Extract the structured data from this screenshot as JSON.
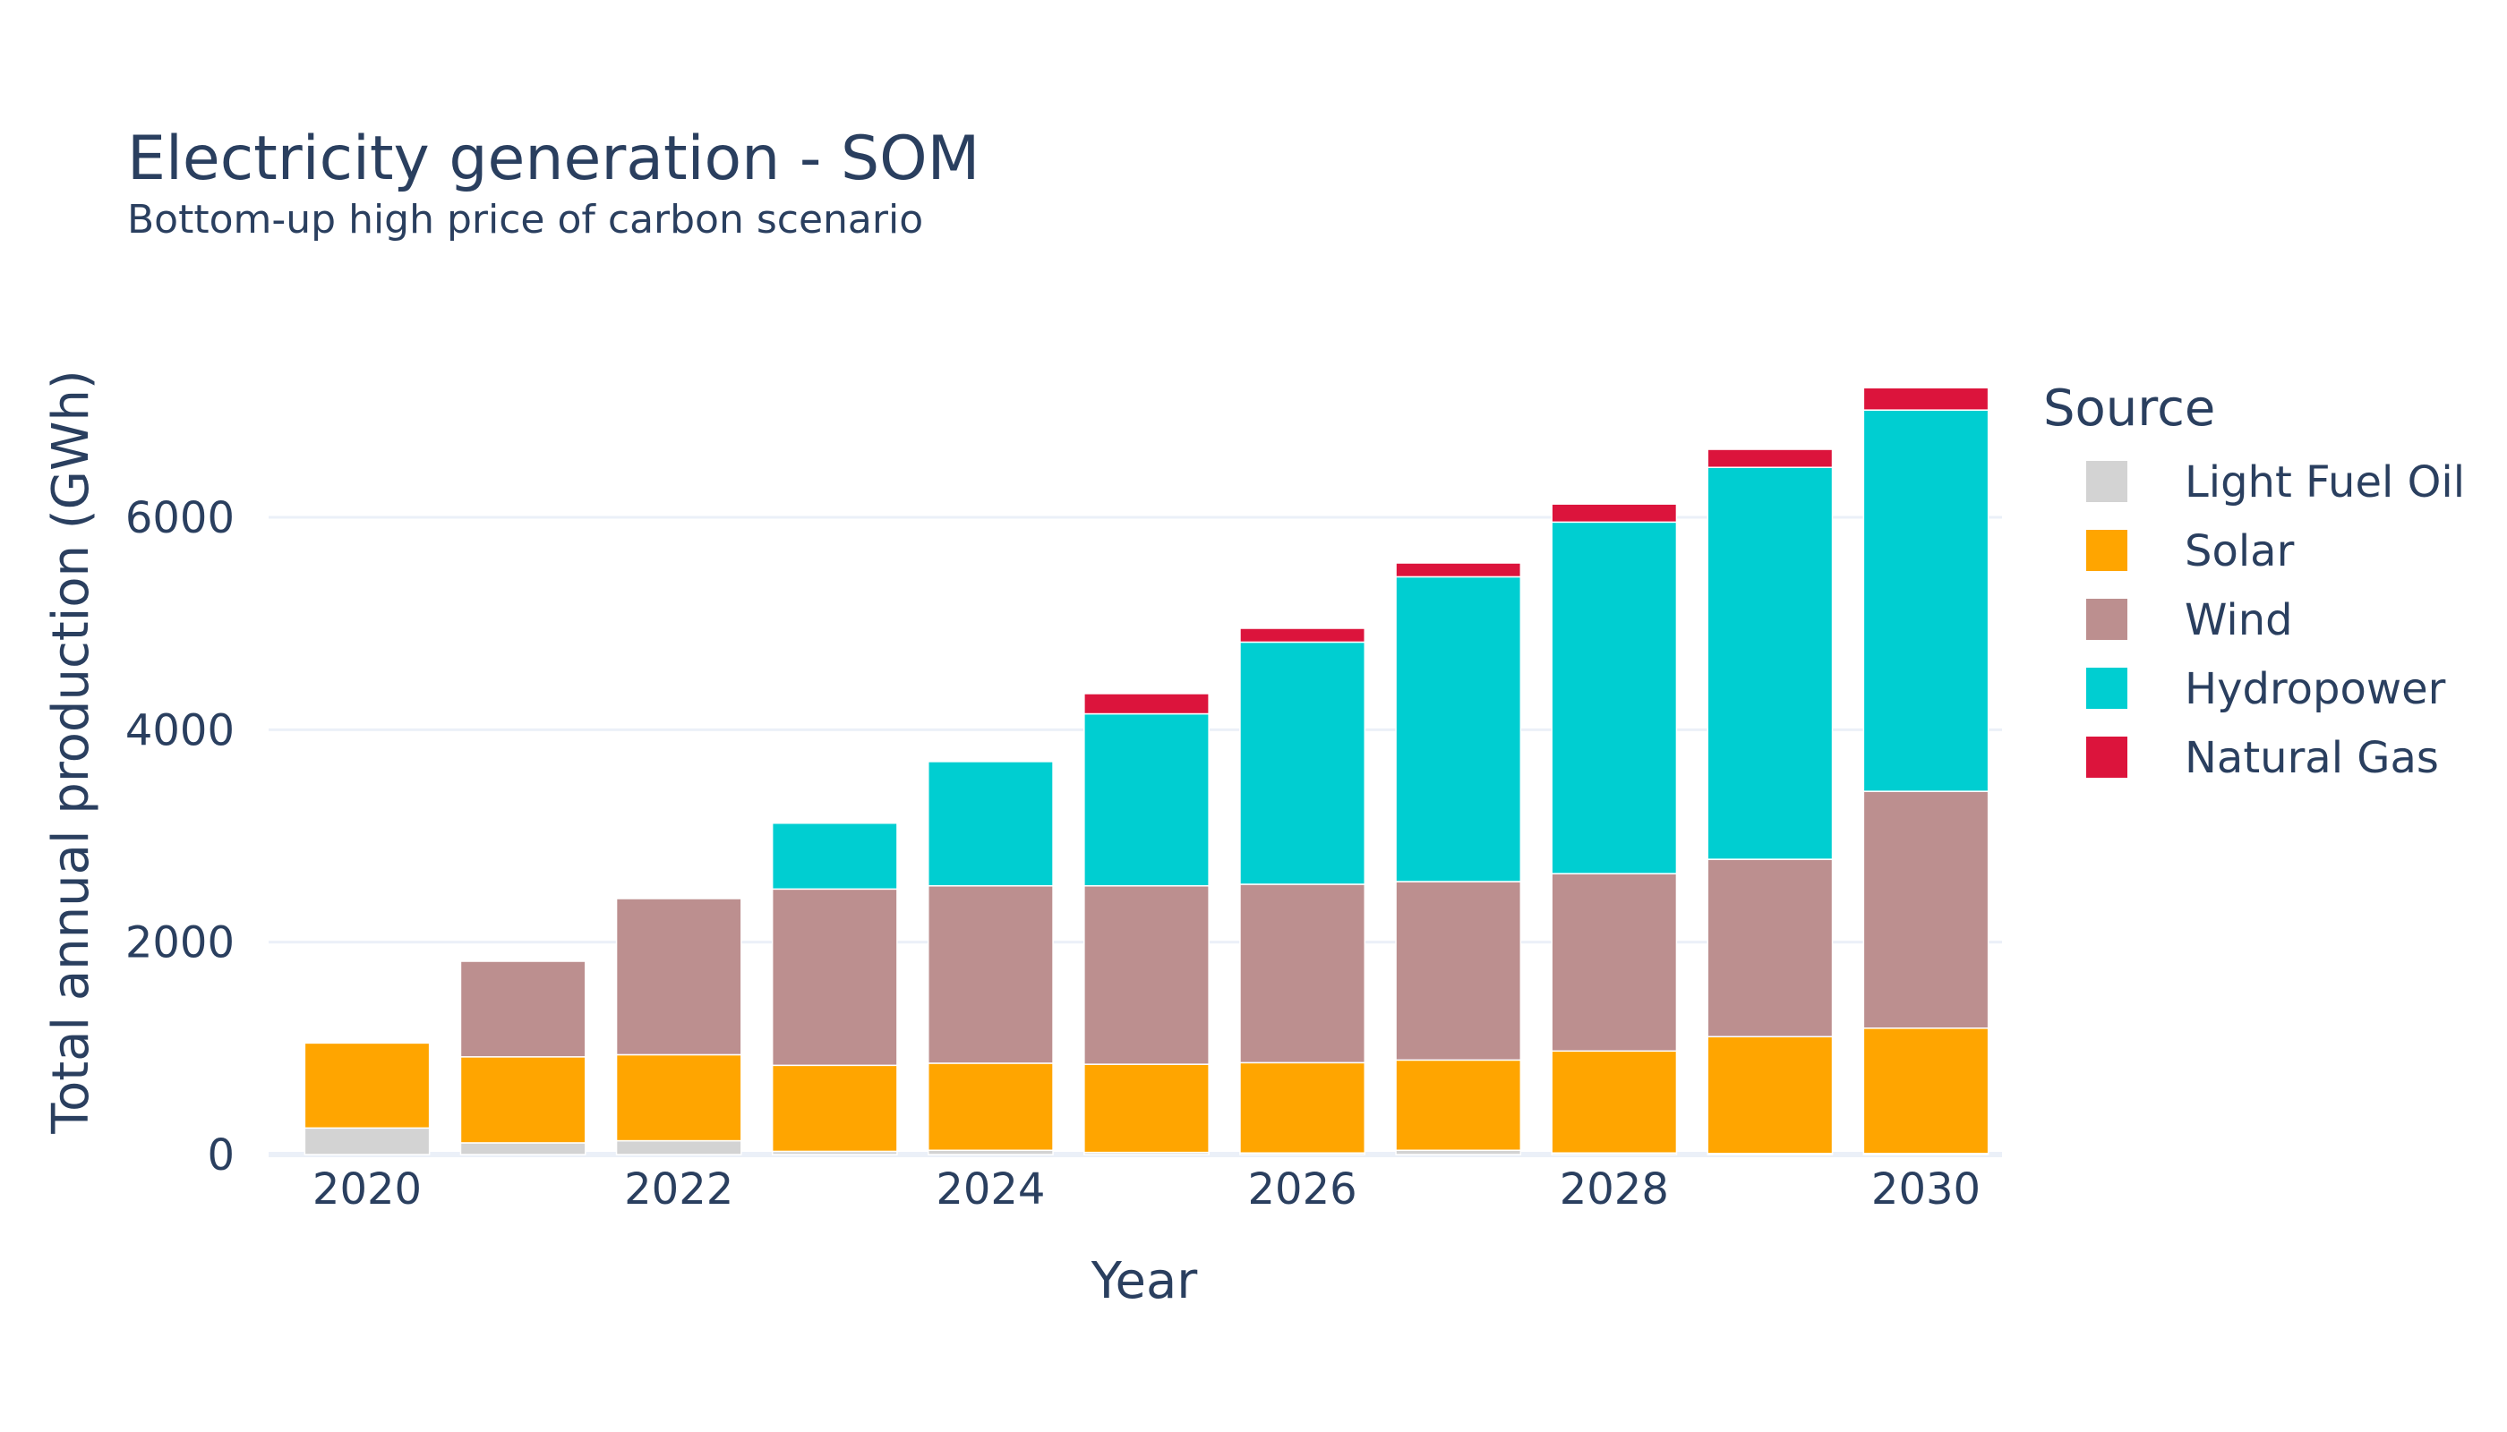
{
  "chart_data": {
    "type": "bar",
    "stacked": true,
    "title": "Electricity generation - SOM",
    "subtitle": "Bottom-up high price of carbon scenario",
    "xlabel": "Year",
    "ylabel": "Total annual production (GWh)",
    "x": [
      2020,
      2021,
      2022,
      2023,
      2024,
      2025,
      2026,
      2027,
      2028,
      2029,
      2030
    ],
    "xticks": [
      "2020",
      "2022",
      "2024",
      "2026",
      "2028",
      "2030"
    ],
    "yticks": [
      "0",
      "2000",
      "4000",
      "6000"
    ],
    "ylim": [
      0,
      7500
    ],
    "grid": true,
    "legend_title": "Source",
    "legend_position": "right",
    "series": [
      {
        "name": "Light Fuel Oil",
        "color": "#d3d3d3",
        "values": [
          250,
          110,
          130,
          30,
          40,
          20,
          15,
          40,
          15,
          10,
          10
        ]
      },
      {
        "name": "Solar",
        "color": "#ffa500",
        "values": [
          800,
          810,
          810,
          810,
          820,
          830,
          850,
          850,
          960,
          1100,
          1180
        ]
      },
      {
        "name": "Wind",
        "color": "#bc8f8f",
        "values": [
          0,
          900,
          1470,
          1660,
          1670,
          1680,
          1680,
          1680,
          1670,
          1670,
          2230
        ]
      },
      {
        "name": "Hydropower",
        "color": "#00ced1",
        "values": [
          0,
          0,
          0,
          620,
          1170,
          1620,
          2280,
          2870,
          3310,
          3690,
          3590
        ]
      },
      {
        "name": "Natural Gas",
        "color": "#dc143c",
        "values": [
          0,
          0,
          0,
          0,
          0,
          190,
          130,
          130,
          170,
          170,
          210
        ]
      }
    ]
  }
}
